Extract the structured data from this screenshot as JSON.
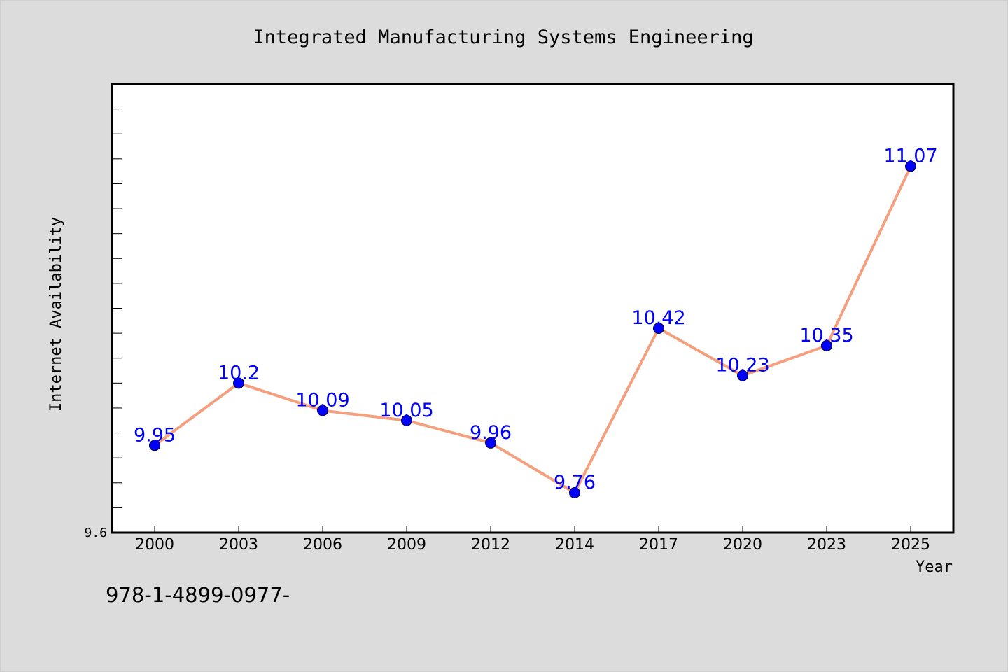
{
  "chart_data": {
    "type": "line",
    "title": "Integrated Manufacturing Systems Engineering",
    "xlabel": "Year",
    "ylabel": "Internet Availability",
    "categories": [
      "2000",
      "2003",
      "2006",
      "2009",
      "2012",
      "2014",
      "2017",
      "2020",
      "2023",
      "2025"
    ],
    "series": [
      {
        "values": [
          9.95,
          10.2,
          10.09,
          10.05,
          9.96,
          9.76,
          10.42,
          10.23,
          10.35,
          11.07
        ],
        "labels": [
          "9.95",
          "10.2",
          "10.09",
          "10.05",
          "9.96",
          "9.76",
          "10.42",
          "10.23",
          "10.35",
          "11.07"
        ]
      }
    ],
    "ylim": [
      9.6,
      11.4
    ],
    "y_tick_labels": [
      "9.6"
    ],
    "grid": false,
    "legend": "none",
    "colors": {
      "line": "#f4a07e",
      "marker": "#0000ff",
      "label": "#0000ff",
      "plot_background": "#ffffff",
      "page_background": "#dcdcdc"
    }
  },
  "footer": {
    "note": "978-1-4899-0977-"
  }
}
